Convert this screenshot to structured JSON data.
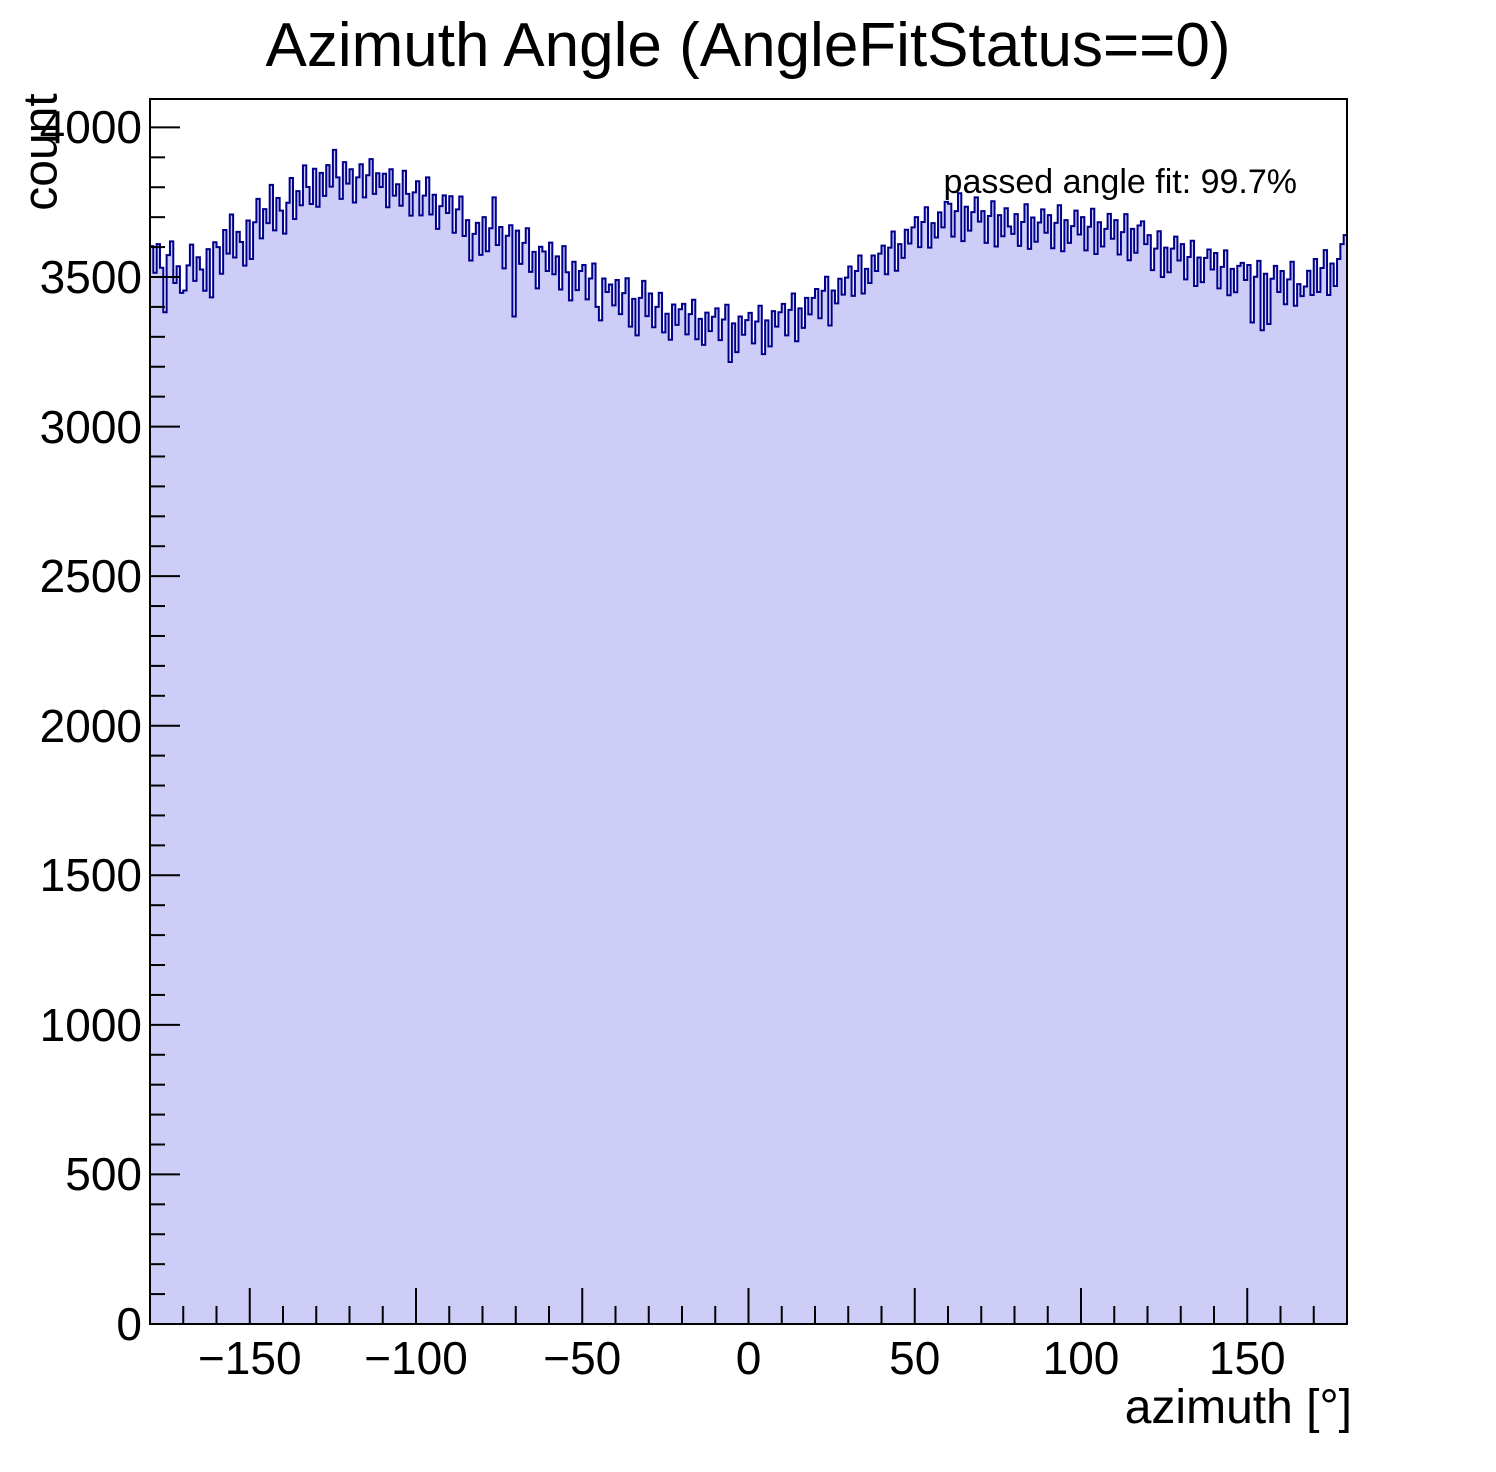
{
  "title": "Azimuth Angle (AngleFitStatus==0)",
  "annotation": "passed angle fit: 99.7%",
  "colors": {
    "hist_fill": "#cdcdf8",
    "hist_line": "#00008c",
    "frame": "#000000",
    "text": "#000000"
  },
  "axes": {
    "x": {
      "title": "azimuth [°]",
      "lim": [
        -180,
        180
      ],
      "major_tick_values": [
        -150,
        -100,
        -50,
        0,
        50,
        100,
        150
      ],
      "major_tick_labels": [
        "−150",
        "−100",
        "−50",
        "0",
        "50",
        "100",
        "150"
      ],
      "minor_step": 10
    },
    "y": {
      "title": "count",
      "lim": [
        0,
        4095
      ],
      "major_tick_values": [
        0,
        500,
        1000,
        1500,
        2000,
        2500,
        3000,
        3500,
        4000
      ],
      "major_tick_labels": [
        "0",
        "500",
        "1000",
        "1500",
        "2000",
        "2500",
        "3000",
        "3500",
        "4000"
      ],
      "minor_step": 100
    }
  },
  "chart_data": {
    "type": "bar",
    "subtype": "histogram-filled-steps",
    "title": "Azimuth Angle (AngleFitStatus==0)",
    "xlabel": "azimuth [°]",
    "ylabel": "count",
    "annotation": "passed angle fit: 99.7%",
    "legend_position": "none",
    "grid": false,
    "bin_start": -180,
    "bin_width": 1,
    "xlim": [
      -180,
      180
    ],
    "ylim": [
      0,
      4095
    ],
    "values": [
      3603,
      3514,
      3610,
      3531,
      3382,
      3573,
      3619,
      3480,
      3536,
      3447,
      3455,
      3539,
      3608,
      3487,
      3566,
      3525,
      3454,
      3593,
      3432,
      3616,
      3600,
      3511,
      3657,
      3578,
      3709,
      3565,
      3651,
      3617,
      3538,
      3689,
      3560,
      3683,
      3761,
      3629,
      3727,
      3680,
      3808,
      3656,
      3764,
      3722,
      3645,
      3748,
      3831,
      3694,
      3787,
      3740,
      3873,
      3801,
      3744,
      3862,
      3735,
      3848,
      3771,
      3874,
      3802,
      3925,
      3833,
      3761,
      3884,
      3812,
      3860,
      3749,
      3833,
      3877,
      3766,
      3840,
      3894,
      3778,
      3847,
      3801,
      3845,
      3733,
      3860,
      3772,
      3810,
      3738,
      3855,
      3778,
      3705,
      3783,
      3820,
      3706,
      3772,
      3833,
      3709,
      3775,
      3661,
      3737,
      3773,
      3714,
      3770,
      3648,
      3726,
      3769,
      3637,
      3690,
      3555,
      3644,
      3681,
      3574,
      3700,
      3586,
      3663,
      3766,
      3607,
      3667,
      3529,
      3638,
      3673,
      3368,
      3655,
      3544,
      3614,
      3663,
      3517,
      3584,
      3462,
      3601,
      3585,
      3520,
      3615,
      3509,
      3569,
      3458,
      3603,
      3516,
      3422,
      3551,
      3456,
      3520,
      3540,
      3425,
      3495,
      3545,
      3400,
      3355,
      3495,
      3450,
      3475,
      3405,
      3490,
      3376,
      3446,
      3496,
      3334,
      3427,
      3305,
      3430,
      3487,
      3369,
      3445,
      3332,
      3400,
      3447,
      3315,
      3377,
      3290,
      3408,
      3340,
      3392,
      3410,
      3308,
      3376,
      3424,
      3292,
      3360,
      3273,
      3381,
      3319,
      3367,
      3395,
      3289,
      3358,
      3407,
      3216,
      3345,
      3249,
      3368,
      3307,
      3356,
      3380,
      3278,
      3351,
      3404,
      3242,
      3355,
      3268,
      3386,
      3334,
      3382,
      3410,
      3305,
      3390,
      3445,
      3285,
      3395,
      3330,
      3430,
      3375,
      3430,
      3460,
      3362,
      3454,
      3501,
      3338,
      3455,
      3412,
      3494,
      3441,
      3498,
      3535,
      3437,
      3520,
      3572,
      3445,
      3527,
      3480,
      3572,
      3520,
      3578,
      3605,
      3509,
      3598,
      3652,
      3521,
      3610,
      3564,
      3658,
      3612,
      3666,
      3700,
      3600,
      3684,
      3733,
      3598,
      3680,
      3632,
      3716,
      3666,
      3751,
      3745,
      3635,
      3720,
      3780,
      3620,
      3735,
      3655,
      3717,
      3766,
      3685,
      3720,
      3614,
      3704,
      3753,
      3602,
      3707,
      3636,
      3730,
      3669,
      3644,
      3710,
      3604,
      3684,
      3743,
      3594,
      3699,
      3618,
      3682,
      3726,
      3648,
      3707,
      3596,
      3681,
      3740,
      3586,
      3690,
      3614,
      3670,
      3722,
      3642,
      3700,
      3589,
      3668,
      3728,
      3577,
      3683,
      3602,
      3661,
      3711,
      3628,
      3690,
      3575,
      3650,
      3710,
      3556,
      3661,
      3581,
      3672,
      3686,
      3610,
      3640,
      3523,
      3595,
      3653,
      3500,
      3598,
      3516,
      3595,
      3635,
      3555,
      3610,
      3492,
      3567,
      3621,
      3470,
      3565,
      3483,
      3564,
      3592,
      3525,
      3580,
      3462,
      3534,
      3589,
      3439,
      3527,
      3449,
      3537,
      3547,
      3490,
      3540,
      3348,
      3501,
      3554,
      3322,
      3511,
      3343,
      3494,
      3537,
      3450,
      3520,
      3409,
      3492,
      3551,
      3404,
      3476,
      3436,
      3468,
      3521,
      3440,
      3560,
      3450,
      3530,
      3590,
      3440,
      3545,
      3470,
      3560,
      3610,
      3640
    ]
  }
}
